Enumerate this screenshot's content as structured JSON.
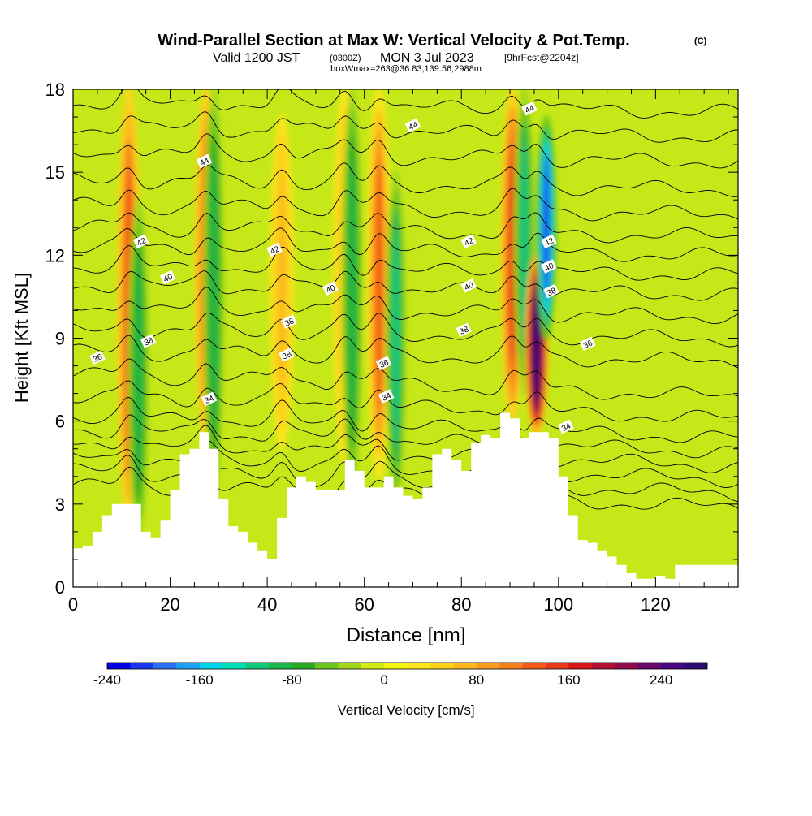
{
  "header": {
    "title": "Wind-Parallel Section at Max W: Vertical Velocity & Pot.Temp.",
    "copyright": "(C)",
    "valid_prefix": "Valid 1200 JST",
    "valid_zulu": "(0300Z)",
    "valid_date": "MON 3 Jul 2023",
    "forecast": "[9hrFcst@2204z]",
    "box_wmax": "boxWmax=263@36.83,139.56,2988m"
  },
  "chart_data": {
    "type": "heatmap",
    "title": "Wind-Parallel Section at Max W: Vertical Velocity & Pot.Temp.",
    "xlabel": "Distance [nm]",
    "ylabel": "Height [Kft MSL]",
    "xlim": [
      0,
      137
    ],
    "ylim": [
      0,
      18
    ],
    "x_ticks": [
      0,
      20,
      40,
      60,
      80,
      100,
      120
    ],
    "y_ticks": [
      0,
      3,
      6,
      9,
      12,
      15,
      18
    ],
    "colorbar": {
      "label": "Vertical Velocity [cm/s]",
      "min": -240,
      "max": 280,
      "step": 20,
      "tick_values": [
        -240,
        -160,
        -80,
        0,
        80,
        160,
        240
      ],
      "tick_labels": [
        "-240",
        "-160",
        "-80",
        "0",
        "80",
        "160",
        "240"
      ],
      "colors": [
        "#0000e6",
        "#1a37ee",
        "#2b6ff5",
        "#1ea0f5",
        "#00d4e8",
        "#00e0b4",
        "#12c87a",
        "#1ab84a",
        "#2aaa22",
        "#6ac61e",
        "#a2d81c",
        "#d2ec14",
        "#f4f40e",
        "#fce61a",
        "#fcd21a",
        "#fcb81c",
        "#fa9c1e",
        "#f6801c",
        "#f05a18",
        "#e83a18",
        "#d81818",
        "#b41032",
        "#8e0a4c",
        "#6a0a6a",
        "#4a0880",
        "#2c0a6e"
      ],
      "field_background": "#c6e818"
    },
    "updraft_bands": [
      {
        "x": 11.5,
        "y_bottom": 2.3,
        "y_top": 18,
        "peak_cm_s": 120,
        "side": "up"
      },
      {
        "x": 13.5,
        "y_bottom": 1.8,
        "y_top": 14,
        "peak_cm_s": -90,
        "side": "down"
      },
      {
        "x": 27.5,
        "y_bottom": 5.0,
        "y_top": 18,
        "peak_cm_s": 120,
        "side": "up"
      },
      {
        "x": 29.0,
        "y_bottom": 3.2,
        "y_top": 18,
        "peak_cm_s": -90,
        "side": "down"
      },
      {
        "x": 43.0,
        "y_bottom": 5.0,
        "y_top": 17,
        "peak_cm_s": 60,
        "side": "up"
      },
      {
        "x": 56.0,
        "y_bottom": 4.5,
        "y_top": 18,
        "peak_cm_s": 60,
        "side": "up"
      },
      {
        "x": 57.5,
        "y_bottom": 3.5,
        "y_top": 18,
        "peak_cm_s": -80,
        "side": "down"
      },
      {
        "x": 63.0,
        "y_bottom": 4.0,
        "y_top": 18,
        "peak_cm_s": 110,
        "side": "up"
      },
      {
        "x": 66.5,
        "y_bottom": 3.0,
        "y_top": 15,
        "peak_cm_s": -100,
        "side": "down"
      },
      {
        "x": 90.5,
        "y_bottom": 6.0,
        "y_top": 18,
        "peak_cm_s": 140,
        "side": "up"
      },
      {
        "x": 93.0,
        "y_bottom": 7.0,
        "y_top": 18,
        "peak_cm_s": -100,
        "side": "down"
      },
      {
        "x": 95.5,
        "y_bottom": 5.5,
        "y_top": 12,
        "peak_cm_s": 263,
        "side": "up"
      },
      {
        "x": 97.5,
        "y_bottom": 9.0,
        "y_top": 17,
        "peak_cm_s": -200,
        "side": "down"
      }
    ],
    "terrain_kft": {
      "x": [
        0,
        2,
        4,
        6,
        8,
        10,
        12,
        14,
        16,
        18,
        20,
        22,
        24,
        26,
        28,
        30,
        32,
        34,
        36,
        38,
        40,
        42,
        44,
        46,
        48,
        50,
        52,
        54,
        56,
        58,
        60,
        62,
        64,
        66,
        68,
        70,
        72,
        74,
        76,
        78,
        80,
        82,
        84,
        86,
        88,
        90,
        92,
        94,
        96,
        98,
        100,
        102,
        104,
        106,
        108,
        110,
        112,
        114,
        116,
        118,
        120,
        122,
        124,
        126,
        128,
        130,
        132,
        134,
        137
      ],
      "top": [
        1.4,
        1.5,
        2.0,
        2.6,
        3.0,
        3.0,
        3.0,
        2.0,
        1.8,
        2.4,
        3.5,
        4.8,
        5.0,
        5.6,
        5.0,
        3.2,
        2.2,
        2.0,
        1.6,
        1.3,
        1.0,
        2.5,
        3.6,
        4.0,
        3.8,
        3.5,
        3.5,
        3.5,
        4.6,
        4.2,
        3.6,
        3.6,
        4.0,
        3.6,
        3.3,
        3.2,
        3.6,
        4.8,
        5.0,
        4.6,
        4.2,
        5.2,
        5.5,
        5.4,
        6.3,
        6.1,
        5.4,
        5.6,
        5.6,
        5.4,
        4.0,
        2.6,
        1.7,
        1.6,
        1.3,
        1.1,
        0.8,
        0.5,
        0.3,
        0.3,
        0.4,
        0.3,
        0.8,
        0.8,
        0.8,
        0.8,
        0.8,
        0.8,
        0.8
      ]
    },
    "contours": {
      "name": "Potential Temperature",
      "interval": 1,
      "levels": [
        29,
        30,
        31,
        32,
        33,
        34,
        35,
        36,
        37,
        38,
        39,
        40,
        41,
        42,
        43,
        44,
        45,
        46,
        47,
        48
      ],
      "base_height_kft": [
        3.7,
        4.2,
        4.7,
        5.2,
        5.7,
        6.2,
        6.9,
        7.7,
        8.5,
        9.3,
        10.1,
        10.9,
        11.6,
        12.3,
        13.0,
        13.8,
        14.7,
        15.7,
        16.6,
        17.5
      ],
      "labels": [
        {
          "text": "36",
          "x": 5,
          "y": 8.3
        },
        {
          "text": "38",
          "x": 15.5,
          "y": 8.9
        },
        {
          "text": "40",
          "x": 19.5,
          "y": 11.2
        },
        {
          "text": "42",
          "x": 14,
          "y": 12.5
        },
        {
          "text": "44",
          "x": 27,
          "y": 15.4
        },
        {
          "text": "34",
          "x": 28,
          "y": 6.8
        },
        {
          "text": "38",
          "x": 44,
          "y": 8.4
        },
        {
          "text": "38",
          "x": 44.5,
          "y": 9.6
        },
        {
          "text": "42",
          "x": 41.5,
          "y": 12.2
        },
        {
          "text": "40",
          "x": 53,
          "y": 10.8
        },
        {
          "text": "36",
          "x": 64,
          "y": 8.1
        },
        {
          "text": "34",
          "x": 64.5,
          "y": 6.9
        },
        {
          "text": "44",
          "x": 70,
          "y": 16.7
        },
        {
          "text": "42",
          "x": 81.5,
          "y": 12.5
        },
        {
          "text": "40",
          "x": 81.5,
          "y": 10.9
        },
        {
          "text": "38",
          "x": 80.5,
          "y": 9.3
        },
        {
          "text": "44",
          "x": 94,
          "y": 17.3
        },
        {
          "text": "42",
          "x": 98,
          "y": 12.5
        },
        {
          "text": "40",
          "x": 98,
          "y": 11.6
        },
        {
          "text": "38",
          "x": 98.5,
          "y": 10.7
        },
        {
          "text": "36",
          "x": 106,
          "y": 8.8
        },
        {
          "text": "34",
          "x": 101.5,
          "y": 5.8
        }
      ]
    }
  }
}
